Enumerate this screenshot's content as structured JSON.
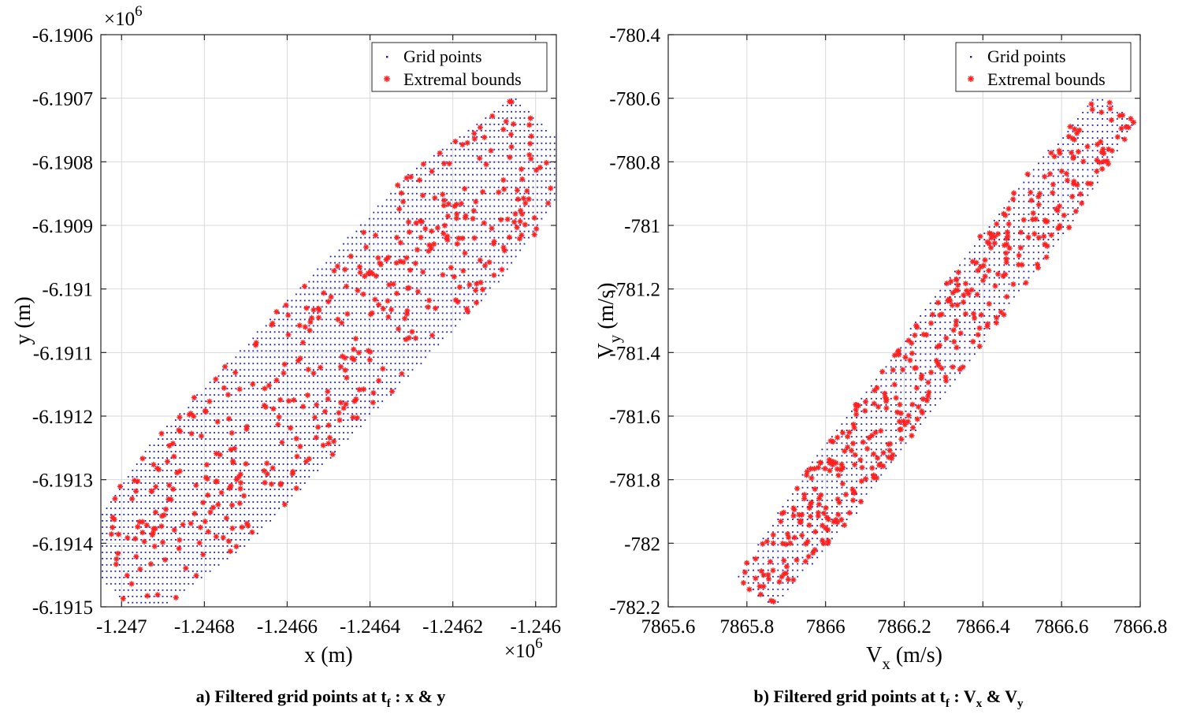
{
  "colors": {
    "grid_points": "#1a1aa6",
    "extremal_bounds": "#ff2020",
    "gridline": "#d9d9d9",
    "axis": "#262626"
  },
  "chart_data": [
    {
      "type": "scatter",
      "title": "",
      "xlabel": "x (m)",
      "ylabel": "y (m)",
      "x_multiplier": "×10",
      "x_multiplier_exp": "6",
      "y_multiplier": "×10",
      "y_multiplier_exp": "6",
      "xlim": [
        -1.24705,
        -1.24595
      ],
      "ylim": [
        -6.1915,
        -6.1906
      ],
      "xticks": [
        -1.247,
        -1.2468,
        -1.2466,
        -1.2464,
        -1.2462,
        -1.246
      ],
      "xtick_labels": [
        "-1.247",
        "-1.2468",
        "-1.2466",
        "-1.2464",
        "-1.2462",
        "-1.246"
      ],
      "yticks": [
        -6.1906,
        -6.1907,
        -6.1908,
        -6.1909,
        -6.191,
        -6.1911,
        -6.1912,
        -6.1913,
        -6.1914,
        -6.1915
      ],
      "ytick_labels": [
        "-6.1906",
        "-6.1907",
        "-6.1908",
        "-6.1909",
        "-6.191",
        "-6.1911",
        "-6.1912",
        "-6.1913",
        "-6.1914",
        "-6.1915"
      ],
      "grid": true,
      "legend": {
        "placement": "top-right",
        "entries": [
          "Grid points",
          "Extremal bounds"
        ]
      },
      "caption": {
        "pre": "a) Filtered grid points at t",
        "sub": "f",
        "mid": " : x & y",
        "v1": "",
        "v1sub": "",
        "amp": "",
        "v2": "",
        "v2sub": ""
      },
      "region": {
        "description": "elongated diagonal band of grid points (data units)",
        "start": [
          -1.24703,
          -6.19147
        ],
        "end": [
          -1.24597,
          -6.19075
        ],
        "half_width": 0.00017,
        "tip_radius": 5.5e-05
      },
      "series": [
        {
          "name": "Grid points",
          "marker": "dot",
          "grid_step": [
            1.04e-05,
            9.9e-06
          ],
          "count": 2400
        },
        {
          "name": "Extremal bounds",
          "marker": "asterisk",
          "count": 440
        }
      ]
    },
    {
      "type": "scatter",
      "title": "",
      "xlabel": "V",
      "xlabel_sub": "x",
      "xlabel_unit": " (m/s)",
      "ylabel": "V",
      "ylabel_sub": "y",
      "ylabel_unit": " (m/s)",
      "xlim": [
        7865.6,
        7866.8
      ],
      "ylim": [
        -782.2,
        -780.4
      ],
      "xticks": [
        7865.6,
        7865.8,
        7866,
        7866.2,
        7866.4,
        7866.6,
        7866.8
      ],
      "xtick_labels": [
        "7865.6",
        "7865.8",
        "7866",
        "7866.2",
        "7866.4",
        "7866.6",
        "7866.8"
      ],
      "yticks": [
        -780.4,
        -780.6,
        -780.8,
        -781,
        -781.2,
        -781.4,
        -781.6,
        -781.8,
        -782,
        -782.2
      ],
      "ytick_labels": [
        "-780.4",
        "-780.6",
        "-780.8",
        "-781",
        "-781.2",
        "-781.4",
        "-781.6",
        "-781.8",
        "-782",
        "-782.2"
      ],
      "grid": true,
      "legend": {
        "placement": "top-right",
        "entries": [
          "Grid points",
          "Extremal bounds"
        ]
      },
      "caption": {
        "pre": "b) Filtered grid points at t",
        "sub": "f",
        "mid": " : ",
        "v1": "V",
        "v1sub": "x",
        "amp": " & ",
        "v2": "V",
        "v2sub": "y"
      },
      "region": {
        "description": "narrow diagonal band of grid points (data units)",
        "start": [
          7865.82,
          -782.16
        ],
        "end": [
          7866.74,
          -780.63
        ],
        "half_width": 0.085,
        "tip_radius": 0.03
      },
      "series": [
        {
          "name": "Grid points",
          "marker": "dot",
          "grid_step": [
            0.0125,
            0.02
          ],
          "count": 2200
        },
        {
          "name": "Extremal bounds",
          "marker": "asterisk",
          "count": 420
        }
      ]
    }
  ]
}
